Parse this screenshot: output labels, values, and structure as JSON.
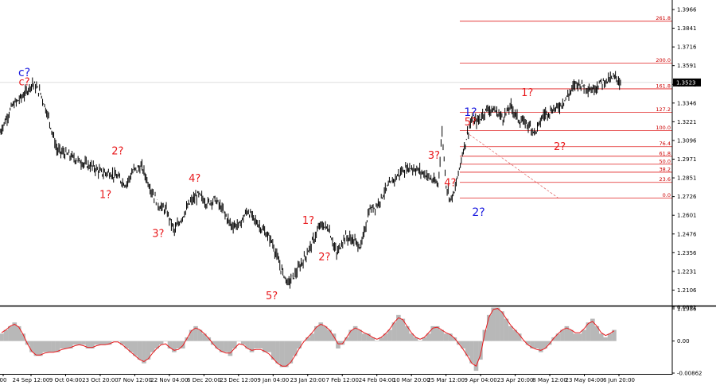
{
  "chart_data": [
    {
      "type": "line",
      "series_style": "bar-ohlc",
      "x_tick_labels": [
        "00",
        "24 Sep 12:00",
        "9 Oct 04:00",
        "23 Oct 20:00",
        "7 Nov 12:00",
        "22 Nov 04:00",
        "6 Dec 20:00",
        "23 Dec 12:00",
        "9 Jan 04:00",
        "23 Jan 20:00",
        "7 Feb 12:00",
        "24 Feb 04:00",
        "10 Mar 20:00",
        "25 Mar 12:00",
        "9 Apr 04:00",
        "23 Apr 20:00",
        "8 May 12:00",
        "23 May 04:00",
        "6 Jun 20:00"
      ],
      "y_tick_labels": [
        "1.3966",
        "1.3841",
        "1.3716",
        "1.3591",
        "1.3471",
        "1.3346",
        "1.3221",
        "1.3096",
        "1.2971",
        "1.2851",
        "1.2726",
        "1.2601",
        "1.2476",
        "1.2356",
        "1.2231",
        "1.2106",
        "1.1986"
      ],
      "ylim": [
        1.1986,
        1.4091
      ],
      "current_price": "1.3523",
      "close_path": [
        [
          0,
          1.318
        ],
        [
          3,
          1.336
        ],
        [
          6,
          1.344
        ],
        [
          8,
          1.352
        ],
        [
          10,
          1.345
        ],
        [
          12,
          1.328
        ],
        [
          14,
          1.306
        ],
        [
          17,
          1.302
        ],
        [
          19,
          1.299
        ],
        [
          21,
          1.296
        ],
        [
          23,
          1.294
        ],
        [
          25,
          1.29
        ],
        [
          27,
          1.29
        ],
        [
          29,
          1.287
        ],
        [
          31,
          1.282
        ],
        [
          33,
          1.292
        ],
        [
          35,
          1.294
        ],
        [
          37,
          1.28
        ],
        [
          39,
          1.268
        ],
        [
          41,
          1.264
        ],
        [
          43,
          1.25
        ],
        [
          45,
          1.26
        ],
        [
          47,
          1.27
        ],
        [
          49,
          1.275
        ],
        [
          51,
          1.269
        ],
        [
          53,
          1.272
        ],
        [
          55,
          1.264
        ],
        [
          57,
          1.254
        ],
        [
          59,
          1.254
        ],
        [
          61,
          1.264
        ],
        [
          63,
          1.257
        ],
        [
          65,
          1.25
        ],
        [
          67,
          1.243
        ],
        [
          69,
          1.226
        ],
        [
          71,
          1.214
        ],
        [
          73,
          1.221
        ],
        [
          75,
          1.231
        ],
        [
          77,
          1.242
        ],
        [
          79,
          1.254
        ],
        [
          81,
          1.252
        ],
        [
          83,
          1.234
        ],
        [
          85,
          1.246
        ],
        [
          87,
          1.244
        ],
        [
          89,
          1.239
        ],
        [
          91,
          1.264
        ],
        [
          93,
          1.268
        ],
        [
          95,
          1.278
        ],
        [
          97,
          1.285
        ],
        [
          99,
          1.291
        ],
        [
          101,
          1.294
        ],
        [
          103,
          1.292
        ],
        [
          105,
          1.289
        ],
        [
          107,
          1.284
        ],
        [
          108,
          1.282
        ],
        [
          109,
          1.318
        ],
        [
          110,
          1.282
        ],
        [
          111,
          1.272
        ],
        [
          112,
          1.276
        ],
        [
          114,
          1.303
        ],
        [
          116,
          1.325
        ],
        [
          118,
          1.326
        ],
        [
          120,
          1.334
        ],
        [
          122,
          1.333
        ],
        [
          124,
          1.328
        ],
        [
          126,
          1.336
        ],
        [
          128,
          1.326
        ],
        [
          130,
          1.324
        ],
        [
          132,
          1.318
        ],
        [
          134,
          1.33
        ],
        [
          136,
          1.333
        ],
        [
          138,
          1.336
        ],
        [
          140,
          1.343
        ],
        [
          142,
          1.352
        ],
        [
          144,
          1.35
        ],
        [
          146,
          1.347
        ],
        [
          148,
          1.352
        ],
        [
          150,
          1.354
        ],
        [
          152,
          1.356
        ],
        [
          153,
          1.351
        ]
      ],
      "fibonacci_levels": [
        {
          "label": "0.0",
          "value": 1.2726
        },
        {
          "label": "23.6",
          "value": 1.2835
        },
        {
          "label": "38.2",
          "value": 1.2905
        },
        {
          "label": "50.0",
          "value": 1.296
        },
        {
          "label": "61.8",
          "value": 1.3015
        },
        {
          "label": "76.4",
          "value": 1.3081
        },
        {
          "label": "100.0",
          "value": 1.3191
        },
        {
          "label": "127.2",
          "value": 1.3318
        },
        {
          "label": "161.8",
          "value": 1.3479
        },
        {
          "label": "200.0",
          "value": 1.3657
        },
        {
          "label": "261.8",
          "value": 1.3945
        }
      ],
      "wave_labels": [
        {
          "text": "c?",
          "color": "blue",
          "bar": 6,
          "price": 1.3565
        },
        {
          "text": "c?",
          "color": "red",
          "bar": 6,
          "price": 1.3502
        },
        {
          "text": "1?",
          "color": "red",
          "bar": 26,
          "price": 1.2728
        },
        {
          "text": "2?",
          "color": "red",
          "bar": 29,
          "price": 1.3028
        },
        {
          "text": "3?",
          "color": "red",
          "bar": 39,
          "price": 1.2458
        },
        {
          "text": "4?",
          "color": "red",
          "bar": 48,
          "price": 1.2838
        },
        {
          "text": "5?",
          "color": "red",
          "bar": 67,
          "price": 1.203
        },
        {
          "text": "1?",
          "color": "red",
          "bar": 76,
          "price": 1.2548
        },
        {
          "text": "2?",
          "color": "red",
          "bar": 80,
          "price": 1.2298
        },
        {
          "text": "3?",
          "color": "red",
          "bar": 107,
          "price": 1.2998
        },
        {
          "text": "4?",
          "color": "red",
          "bar": 111,
          "price": 1.2808
        },
        {
          "text": "5?",
          "color": "red",
          "bar": 116,
          "price": 1.3226
        },
        {
          "text": "1?",
          "color": "blue",
          "bar": 116,
          "price": 1.3293
        },
        {
          "text": "2?",
          "color": "blue",
          "bar": 118,
          "price": 1.2603
        },
        {
          "text": "1?",
          "color": "red",
          "bar": 130,
          "price": 1.343
        },
        {
          "text": "2?",
          "color": "red",
          "bar": 138,
          "price": 1.3058
        }
      ]
    },
    {
      "type": "area",
      "indicator": "oscillator",
      "y_tick_labels": [
        "0.0091",
        "0.00",
        "-0.00862"
      ],
      "ylim": [
        -0.00862,
        0.0091
      ],
      "histogram": [
        0.002,
        0.003,
        0.004,
        0.005,
        0.004,
        0.002,
        -0.001,
        -0.003,
        -0.004,
        -0.004,
        -0.003,
        -0.003,
        -0.003,
        -0.003,
        -0.002,
        -0.002,
        -0.002,
        -0.001,
        -0.001,
        -0.001,
        -0.002,
        -0.002,
        -0.001,
        -0.001,
        -0.001,
        -0.001,
        0.0,
        0.0,
        -0.001,
        -0.002,
        -0.003,
        -0.004,
        -0.005,
        -0.006,
        -0.005,
        -0.003,
        -0.002,
        -0.001,
        0.0,
        -0.002,
        -0.003,
        -0.002,
        -0.002,
        0.001,
        0.003,
        0.004,
        0.003,
        0.002,
        0.001,
        -0.001,
        -0.002,
        -0.003,
        -0.003,
        -0.004,
        -0.002,
        0.0,
        -0.001,
        -0.002,
        -0.003,
        -0.002,
        -0.002,
        -0.003,
        -0.003,
        -0.005,
        -0.006,
        -0.007,
        -0.007,
        -0.006,
        -0.004,
        -0.002,
        0.0,
        0.001,
        0.002,
        0.004,
        0.005,
        0.004,
        0.003,
        0.002,
        -0.002,
        -0.001,
        0.001,
        0.003,
        0.004,
        0.003,
        0.002,
        0.002,
        0.001,
        0.0,
        0.001,
        0.002,
        0.003,
        0.005,
        0.007,
        0.006,
        0.004,
        0.002,
        0.001,
        0.0,
        0.001,
        0.002,
        0.004,
        0.004,
        0.003,
        0.002,
        0.002,
        0.001,
        -0.001,
        -0.002,
        -0.004,
        -0.006,
        -0.008,
        -0.005,
        0.003,
        0.007,
        0.009,
        0.009,
        0.008,
        0.006,
        0.004,
        0.003,
        0.002,
        0.0,
        -0.001,
        -0.002,
        -0.002,
        -0.003,
        -0.002,
        -0.001,
        0.001,
        0.002,
        0.003,
        0.004,
        0.003,
        0.002,
        0.002,
        0.003,
        0.005,
        0.006,
        0.004,
        0.002,
        0.001,
        0.002,
        0.003
      ]
    }
  ]
}
